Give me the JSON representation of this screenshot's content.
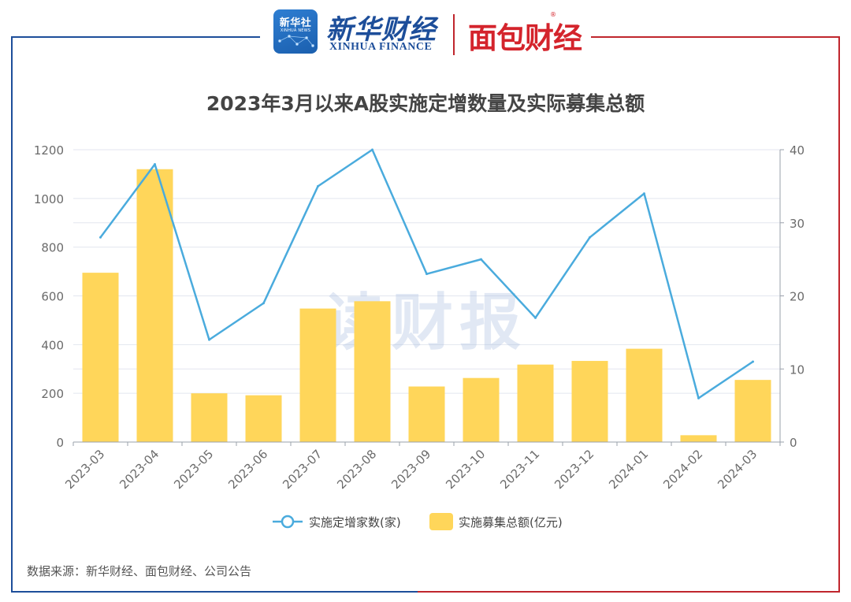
{
  "header": {
    "xinhua_she_badge": "新华社",
    "xinhua_she_badge_en": "XINHUA NEWS",
    "xinhua_finance_cn": "新华财经",
    "xinhua_finance_en": "XINHUA FINANCE",
    "mianbao_caijing": "面包财经",
    "registered_mark": "®"
  },
  "watermark": "读财报",
  "source": "数据来源：新华财经、面包财经、公司公告",
  "colors": {
    "bar": "#FFD65A",
    "line": "#4AABDD",
    "frame_left": "#1d4e9a",
    "frame_right": "#c0262d"
  },
  "chart_data": {
    "type": "bar",
    "title": "2023年3月以来A股实施定增数量及实际募集总额",
    "categories": [
      "2023-03",
      "2023-04",
      "2023-05",
      "2023-06",
      "2023-07",
      "2023-08",
      "2023-09",
      "2023-10",
      "2023-11",
      "2023-12",
      "2024-01",
      "2024-02",
      "2024-03"
    ],
    "series": [
      {
        "name": "实施定增家数(家)",
        "type": "line",
        "axis": "right",
        "values": [
          28,
          38,
          14,
          19,
          35,
          40,
          23,
          25,
          17,
          28,
          34,
          6,
          11
        ]
      },
      {
        "name": "实施募集总额(亿元)",
        "type": "bar",
        "axis": "left",
        "values": [
          695,
          1120,
          200,
          192,
          548,
          578,
          228,
          263,
          318,
          333,
          383,
          28,
          255
        ]
      }
    ],
    "y_left": {
      "min": 0,
      "max": 1200,
      "ticks": [
        0,
        200,
        400,
        600,
        800,
        1000,
        1200
      ]
    },
    "y_right": {
      "min": 0,
      "max": 40,
      "ticks": [
        0,
        10,
        20,
        30,
        40
      ]
    },
    "grid": true,
    "legend_position": "bottom-center"
  }
}
